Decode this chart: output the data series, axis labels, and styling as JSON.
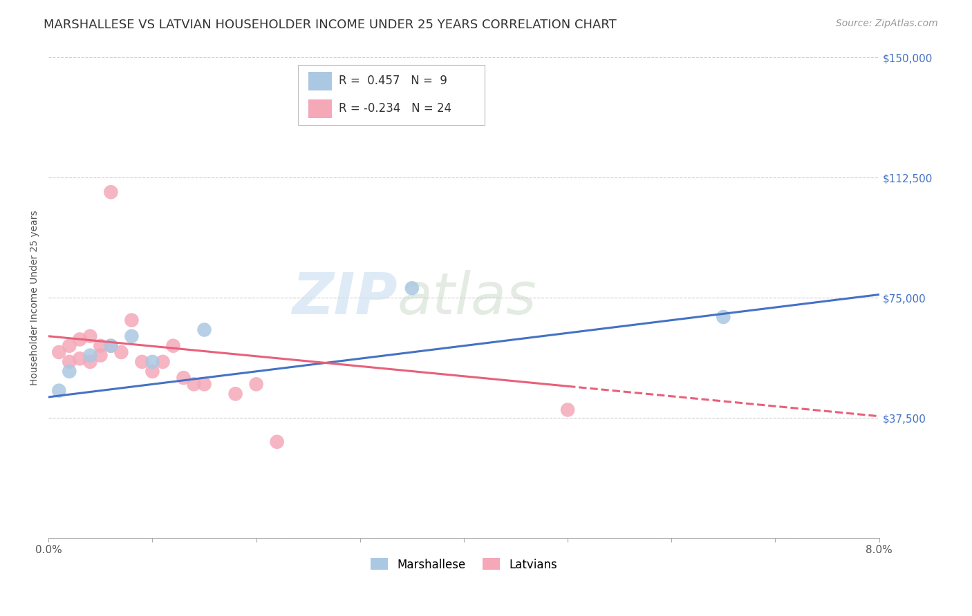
{
  "title": "MARSHALLESE VS LATVIAN HOUSEHOLDER INCOME UNDER 25 YEARS CORRELATION CHART",
  "source": "Source: ZipAtlas.com",
  "ylabel": "Householder Income Under 25 years",
  "watermark_zip": "ZIP",
  "watermark_atlas": "atlas",
  "xmin": 0.0,
  "xmax": 0.08,
  "ymin": 0,
  "ymax": 150000,
  "yticks": [
    0,
    37500,
    75000,
    112500,
    150000
  ],
  "ytick_labels": [
    "",
    "$37,500",
    "$75,000",
    "$112,500",
    "$150,000"
  ],
  "xticks": [
    0.0,
    0.01,
    0.02,
    0.03,
    0.04,
    0.05,
    0.06,
    0.07,
    0.08
  ],
  "xtick_labels": [
    "0.0%",
    "",
    "",
    "",
    "",
    "",
    "",
    "",
    "8.0%"
  ],
  "marshallese_x": [
    0.001,
    0.002,
    0.004,
    0.006,
    0.008,
    0.01,
    0.015,
    0.035,
    0.065
  ],
  "marshallese_y": [
    46000,
    52000,
    57000,
    60000,
    63000,
    55000,
    65000,
    78000,
    69000
  ],
  "latvians_x": [
    0.001,
    0.002,
    0.002,
    0.003,
    0.003,
    0.004,
    0.004,
    0.005,
    0.005,
    0.006,
    0.006,
    0.007,
    0.008,
    0.009,
    0.01,
    0.011,
    0.012,
    0.013,
    0.014,
    0.015,
    0.018,
    0.02,
    0.022,
    0.05
  ],
  "latvians_y": [
    58000,
    60000,
    55000,
    62000,
    56000,
    63000,
    55000,
    60000,
    57000,
    108000,
    60000,
    58000,
    68000,
    55000,
    52000,
    55000,
    60000,
    50000,
    48000,
    48000,
    45000,
    48000,
    30000,
    40000
  ],
  "blue_color": "#abc8e2",
  "blue_line_color": "#4472c4",
  "pink_color": "#f4a8b8",
  "pink_line_color": "#e8607a",
  "background_color": "#ffffff",
  "title_fontsize": 13,
  "source_fontsize": 10,
  "axis_label_fontsize": 10,
  "tick_label_fontsize": 11,
  "legend_fontsize": 12,
  "blue_r": "0.457",
  "blue_n": "9",
  "pink_r": "-0.234",
  "pink_n": "24"
}
